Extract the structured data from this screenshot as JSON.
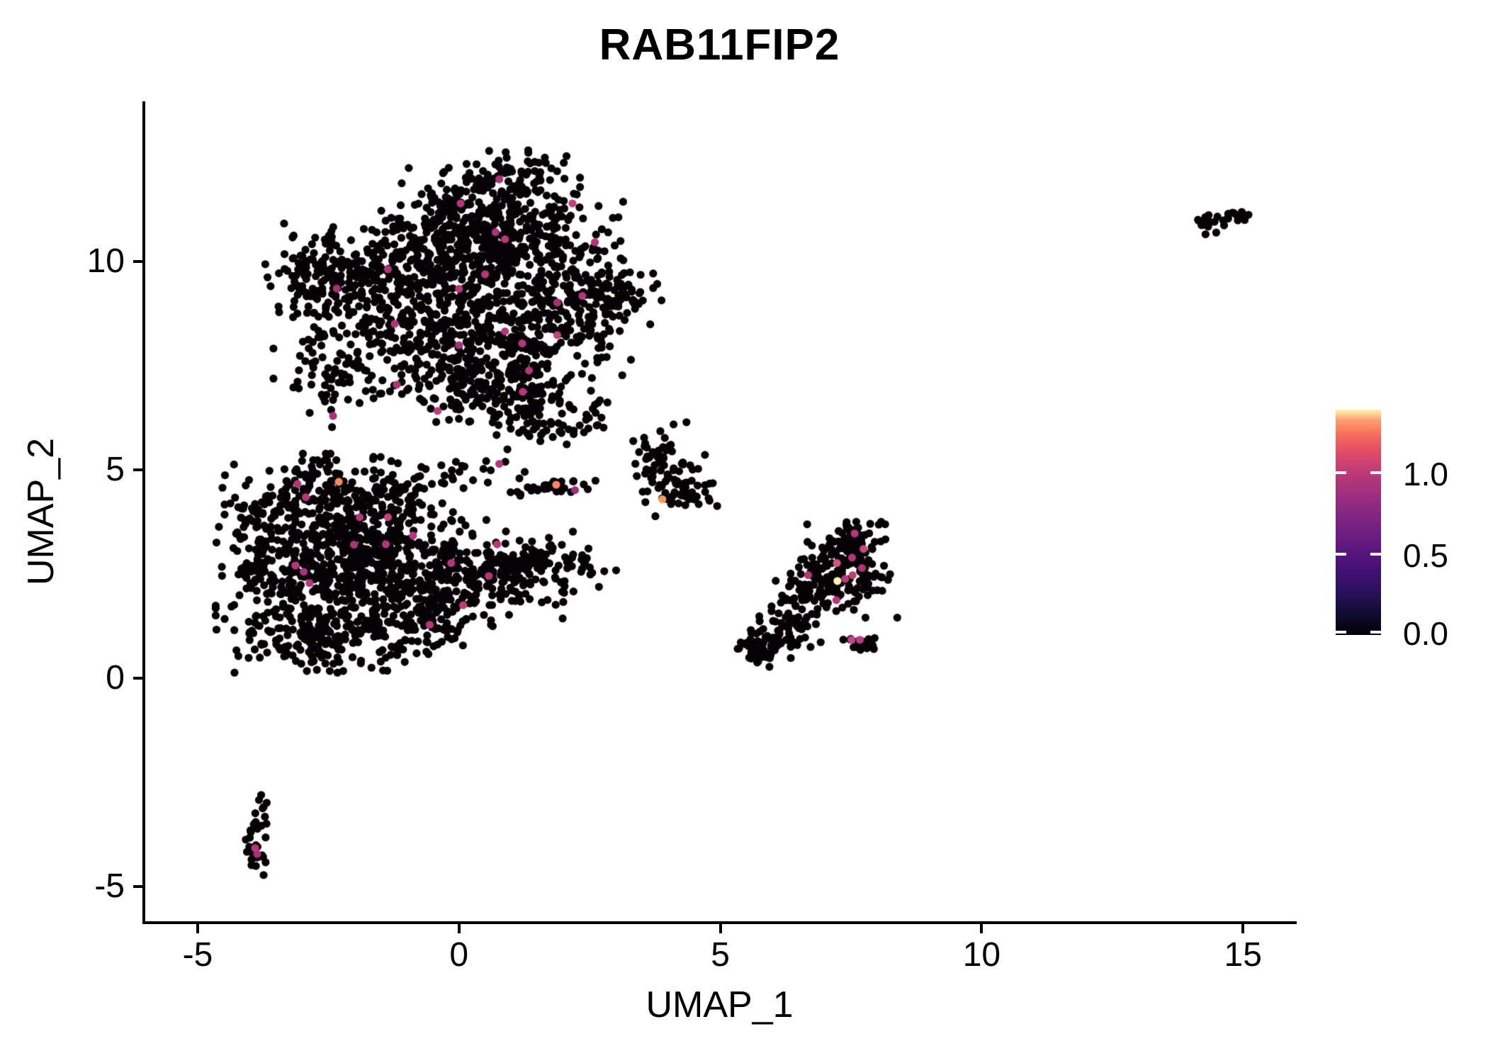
{
  "title": "RAB11FIP2",
  "axes": {
    "x": {
      "label": "UMAP_1",
      "range": [
        -6.03,
        16.0
      ],
      "ticks": [
        {
          "label": "-5",
          "value": -5
        },
        {
          "label": "0",
          "value": 0
        },
        {
          "label": "5",
          "value": 5
        },
        {
          "label": "10",
          "value": 10
        },
        {
          "label": "15",
          "value": 15
        }
      ]
    },
    "y": {
      "label": "UMAP_2",
      "range": [
        -5.87,
        13.84
      ],
      "ticks": [
        {
          "label": "-5",
          "value": -5
        },
        {
          "label": "0",
          "value": 0
        },
        {
          "label": "5",
          "value": 5
        },
        {
          "label": "10",
          "value": 10
        }
      ]
    }
  },
  "legend": {
    "min": 0.0,
    "max": 1.39,
    "colormap": "magma",
    "ticks": [
      {
        "label": "1.0",
        "value": 1.0
      },
      {
        "label": "0.5",
        "value": 0.5
      },
      {
        "label": "0.0",
        "value": 0.0
      }
    ],
    "stops": [
      [
        0.0,
        "#000004"
      ],
      [
        0.1,
        "#120D34"
      ],
      [
        0.2,
        "#2C115F"
      ],
      [
        0.3,
        "#471078"
      ],
      [
        0.4,
        "#611980"
      ],
      [
        0.5,
        "#7B2382"
      ],
      [
        0.6,
        "#962C80"
      ],
      [
        0.7,
        "#B73779"
      ],
      [
        0.75,
        "#C83E73"
      ],
      [
        0.8,
        "#DE4968"
      ],
      [
        0.85,
        "#ED5A5F"
      ],
      [
        0.9,
        "#F8765C"
      ],
      [
        0.95,
        "#FD9B6B"
      ],
      [
        1.0,
        "#FCF6B0"
      ]
    ]
  },
  "chart_data": {
    "type": "scatter",
    "title": "RAB11FIP2",
    "xlabel": "UMAP_1",
    "ylabel": "UMAP_2",
    "xlim": [
      -6.03,
      16.0
    ],
    "ylim": [
      -5.87,
      13.84
    ],
    "grid": false,
    "point_radius_px": 5.6,
    "base_color": "#050104",
    "seed": 42,
    "clusters": [
      {
        "name": "top-main",
        "blobs": [
          [
            1.05,
            12.05,
            0.55,
            0.3,
            70
          ],
          [
            0.35,
            11.25,
            0.85,
            0.5,
            160
          ],
          [
            -0.2,
            10.35,
            1.05,
            0.45,
            200
          ],
          [
            1.3,
            10.6,
            0.8,
            0.5,
            150
          ],
          [
            -2.0,
            9.5,
            0.75,
            0.65,
            190
          ],
          [
            -2.8,
            9.8,
            0.35,
            0.45,
            50
          ],
          [
            0.4,
            9.3,
            1.2,
            0.55,
            280
          ],
          [
            2.45,
            9.2,
            0.55,
            0.5,
            110
          ],
          [
            3.3,
            9.0,
            0.25,
            0.3,
            20
          ],
          [
            0.3,
            8.3,
            1.3,
            0.45,
            230
          ],
          [
            -2.4,
            7.4,
            0.5,
            0.6,
            70
          ],
          [
            0.2,
            7.5,
            1.1,
            0.45,
            190
          ],
          [
            1.0,
            6.8,
            0.8,
            0.4,
            120
          ],
          [
            1.5,
            6.15,
            0.55,
            0.3,
            50
          ]
        ]
      },
      {
        "name": "bottom-left-main",
        "blobs": [
          [
            -2.8,
            2.7,
            0.8,
            1.1,
            380
          ],
          [
            -1.6,
            3.0,
            0.75,
            0.85,
            280
          ],
          [
            -2.3,
            4.35,
            0.95,
            0.45,
            160
          ],
          [
            -2.7,
            1.05,
            0.85,
            0.4,
            150
          ],
          [
            -3.9,
            2.9,
            0.25,
            0.8,
            55
          ],
          [
            -0.6,
            2.3,
            0.7,
            0.65,
            170
          ],
          [
            0.5,
            2.45,
            0.65,
            0.5,
            120
          ],
          [
            1.5,
            2.6,
            0.6,
            0.4,
            80
          ],
          [
            2.35,
            2.65,
            0.25,
            0.2,
            18
          ],
          [
            0.0,
            4.8,
            0.65,
            0.3,
            30
          ],
          [
            -0.9,
            1.2,
            0.5,
            0.35,
            60
          ]
        ]
      },
      {
        "name": "mid-streak",
        "blobs": [
          [
            1.82,
            4.6,
            0.28,
            0.11,
            26
          ],
          [
            1.3,
            4.55,
            0.12,
            0.08,
            5
          ]
        ]
      },
      {
        "name": "mid-small",
        "blobs": [
          [
            4.25,
            4.62,
            0.3,
            0.32,
            55
          ],
          [
            3.95,
            5.45,
            0.28,
            0.3,
            26
          ],
          [
            3.6,
            4.75,
            0.15,
            0.25,
            10
          ],
          [
            3.6,
            5.55,
            0.18,
            0.22,
            12
          ]
        ]
      },
      {
        "name": "right-band",
        "blobs": [
          [
            5.75,
            0.72,
            0.26,
            0.2,
            50
          ],
          [
            6.15,
            1.05,
            0.3,
            0.25,
            30
          ],
          [
            6.55,
            1.55,
            0.35,
            0.3,
            35
          ],
          [
            6.9,
            2.1,
            0.4,
            0.35,
            55
          ],
          [
            7.35,
            2.6,
            0.45,
            0.5,
            150
          ],
          [
            7.6,
            3.4,
            0.25,
            0.25,
            30
          ],
          [
            7.7,
            0.85,
            0.17,
            0.1,
            16
          ],
          [
            7.95,
            0.78,
            0.1,
            0.07,
            6
          ]
        ]
      },
      {
        "name": "far-right",
        "blobs": [
          [
            14.33,
            10.88,
            0.17,
            0.1,
            13
          ],
          [
            14.7,
            11.07,
            0.2,
            0.09,
            15
          ],
          [
            14.97,
            11.15,
            0.07,
            0.06,
            4
          ]
        ]
      },
      {
        "name": "bottom-left-small",
        "blobs": [
          [
            -3.8,
            -3.22,
            0.1,
            0.18,
            9
          ],
          [
            -3.93,
            -3.75,
            0.1,
            0.2,
            8
          ],
          [
            -3.85,
            -4.22,
            0.14,
            0.22,
            15
          ]
        ]
      },
      {
        "name": "strays",
        "blobs": [
          [
            3.0,
            2.58,
            0.01,
            0.01,
            1
          ],
          [
            2.62,
            4.73,
            0.01,
            0.01,
            1
          ],
          [
            2.62,
            6.05,
            0.05,
            0.05,
            2
          ]
        ]
      }
    ],
    "expressing_cells": [
      {
        "x": 0.77,
        "y": 11.97,
        "value": 0.62,
        "color": "#AC3179"
      },
      {
        "x": 0.03,
        "y": 11.39,
        "value": 0.62,
        "color": "#B5367A"
      },
      {
        "x": 2.17,
        "y": 11.39,
        "value": 0.7,
        "color": "#C0427B"
      },
      {
        "x": 0.7,
        "y": 10.7,
        "value": 0.58,
        "color": "#A93278"
      },
      {
        "x": 0.88,
        "y": 10.53,
        "value": 0.62,
        "color": "#B5367A"
      },
      {
        "x": 2.6,
        "y": 10.46,
        "value": 0.62,
        "color": "#B5367A"
      },
      {
        "x": -1.36,
        "y": 9.81,
        "value": 0.6,
        "color": "#AE3379"
      },
      {
        "x": 0.5,
        "y": 9.69,
        "value": 0.62,
        "color": "#B5367A"
      },
      {
        "x": -2.34,
        "y": 9.35,
        "value": 0.55,
        "color": "#A82F7B"
      },
      {
        "x": 0.0,
        "y": 9.34,
        "value": 0.62,
        "color": "#B5367A"
      },
      {
        "x": 2.36,
        "y": 9.17,
        "value": 0.62,
        "color": "#B5367A"
      },
      {
        "x": 1.88,
        "y": 9.01,
        "value": 0.58,
        "color": "#AB3079"
      },
      {
        "x": -1.23,
        "y": 8.5,
        "value": 0.61,
        "color": "#B23579"
      },
      {
        "x": 0.88,
        "y": 8.32,
        "value": 0.62,
        "color": "#B5367A"
      },
      {
        "x": 1.88,
        "y": 8.23,
        "value": 0.72,
        "color": "#C2437B"
      },
      {
        "x": 1.21,
        "y": 8.03,
        "value": 0.62,
        "color": "#B5367A"
      },
      {
        "x": 0.0,
        "y": 7.99,
        "value": 0.57,
        "color": "#AA327B"
      },
      {
        "x": 1.34,
        "y": 7.38,
        "value": 0.62,
        "color": "#B5367A"
      },
      {
        "x": 1.22,
        "y": 6.87,
        "value": 0.62,
        "color": "#B5367A"
      },
      {
        "x": -1.19,
        "y": 7.04,
        "value": 0.6,
        "color": "#B03479"
      },
      {
        "x": -0.41,
        "y": 6.41,
        "value": 0.66,
        "color": "#BB3C7B"
      },
      {
        "x": -2.41,
        "y": 6.29,
        "value": 0.57,
        "color": "#A93178"
      },
      {
        "x": 0.77,
        "y": 5.14,
        "value": 0.62,
        "color": "#B5367A"
      },
      {
        "x": 1.86,
        "y": 4.64,
        "value": 1.05,
        "color": "#F8875F"
      },
      {
        "x": 2.22,
        "y": 4.51,
        "value": 0.52,
        "color": "#A22E7E"
      },
      {
        "x": 3.89,
        "y": 4.29,
        "value": 1.1,
        "color": "#FA9B62"
      },
      {
        "x": -3.09,
        "y": 4.66,
        "value": 0.62,
        "color": "#B5367A"
      },
      {
        "x": -2.93,
        "y": 4.34,
        "value": 0.62,
        "color": "#B5367A"
      },
      {
        "x": -2.3,
        "y": 4.71,
        "value": 1.02,
        "color": "#F68A5E"
      },
      {
        "x": -1.9,
        "y": 3.86,
        "value": 0.62,
        "color": "#B5367A"
      },
      {
        "x": -1.36,
        "y": 3.86,
        "value": 0.7,
        "color": "#C0427B"
      },
      {
        "x": -0.88,
        "y": 3.42,
        "value": 0.62,
        "color": "#B5367A"
      },
      {
        "x": -2.01,
        "y": 3.2,
        "value": 0.59,
        "color": "#AD3378"
      },
      {
        "x": -1.4,
        "y": 3.21,
        "value": 0.62,
        "color": "#B5367A"
      },
      {
        "x": 0.73,
        "y": 3.21,
        "value": 0.62,
        "color": "#B5367A"
      },
      {
        "x": -3.13,
        "y": 2.7,
        "value": 0.62,
        "color": "#B5367A"
      },
      {
        "x": -2.97,
        "y": 2.55,
        "value": 0.56,
        "color": "#AA3078"
      },
      {
        "x": -0.15,
        "y": 2.76,
        "value": 0.62,
        "color": "#B5367A"
      },
      {
        "x": 0.57,
        "y": 2.45,
        "value": 0.61,
        "color": "#B3357A"
      },
      {
        "x": -2.86,
        "y": 2.28,
        "value": 0.62,
        "color": "#B5367A"
      },
      {
        "x": 0.08,
        "y": 1.75,
        "value": 0.66,
        "color": "#BC3D7A"
      },
      {
        "x": -0.56,
        "y": 1.28,
        "value": 0.62,
        "color": "#B5367A"
      },
      {
        "x": 7.57,
        "y": 3.47,
        "value": 0.62,
        "color": "#B5367A"
      },
      {
        "x": 7.74,
        "y": 3.1,
        "value": 0.74,
        "color": "#C64685"
      },
      {
        "x": 7.52,
        "y": 2.89,
        "value": 0.62,
        "color": "#B5367A"
      },
      {
        "x": 7.23,
        "y": 2.76,
        "value": 0.8,
        "color": "#D0547E"
      },
      {
        "x": 7.71,
        "y": 2.64,
        "value": 0.6,
        "color": "#B03379"
      },
      {
        "x": 7.53,
        "y": 2.47,
        "value": 0.7,
        "color": "#C04076"
      },
      {
        "x": 6.68,
        "y": 2.47,
        "value": 0.62,
        "color": "#B5367A"
      },
      {
        "x": 7.39,
        "y": 2.38,
        "value": 0.65,
        "color": "#BA3B7C"
      },
      {
        "x": 7.24,
        "y": 2.33,
        "value": 1.35,
        "color": "#FBF2B4"
      },
      {
        "x": 7.22,
        "y": 1.87,
        "value": 0.62,
        "color": "#B5367A"
      },
      {
        "x": 7.51,
        "y": 0.92,
        "value": 0.72,
        "color": "#C04687"
      },
      {
        "x": 7.67,
        "y": 0.92,
        "value": 0.66,
        "color": "#BA3C80"
      },
      {
        "x": -3.9,
        "y": -4.08,
        "value": 0.62,
        "color": "#B5367A"
      },
      {
        "x": -3.86,
        "y": -4.22,
        "value": 0.57,
        "color": "#A93278"
      }
    ]
  }
}
